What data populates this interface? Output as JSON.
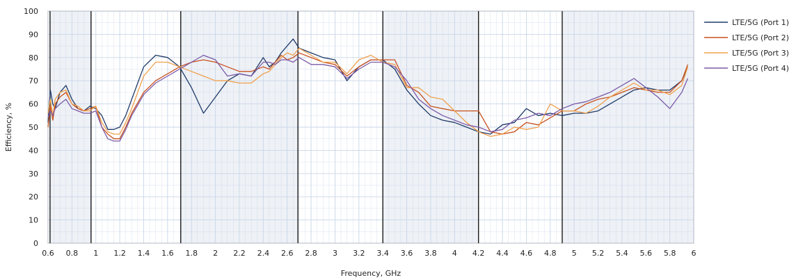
{
  "chart_data": {
    "type": "line",
    "title": "",
    "xlabel": "Frequency, GHz",
    "ylabel": "Efficiency, %",
    "xlim": [
      0.6,
      6.0
    ],
    "ylim": [
      0,
      100
    ],
    "x_ticks": [
      0.6,
      0.8,
      1,
      1.2,
      1.4,
      1.6,
      1.8,
      2,
      2.2,
      2.4,
      2.6,
      2.8,
      3,
      3.2,
      3.4,
      3.6,
      3.8,
      4,
      4.2,
      4.4,
      4.6,
      4.8,
      5,
      5.2,
      5.4,
      5.6,
      5.8,
      6
    ],
    "x_tick_labels": [
      "0.6",
      "0.8",
      "1",
      "1.2",
      "1.4",
      "1.6",
      "1.8",
      "2",
      "2.2",
      "2.4",
      "2.6",
      "2.8",
      "3",
      "3.2",
      "3.4",
      "3.6",
      "3.8",
      "4",
      "4.2",
      "4.4",
      "4.6",
      "4.8",
      "5",
      "5.2",
      "5.4",
      "5.6",
      "5.8",
      "6"
    ],
    "y_ticks": [
      0,
      10,
      20,
      30,
      40,
      50,
      60,
      70,
      80,
      90,
      100
    ],
    "y_tick_labels": [
      "0",
      "10",
      "20",
      "30",
      "40",
      "50",
      "60",
      "70",
      "80",
      "90",
      "100"
    ],
    "grid": true,
    "legend_position": "right",
    "band_edges": [
      0.617,
      0.96,
      1.71,
      2.69,
      3.4,
      4.2,
      4.9
    ],
    "shaded_bands": [
      [
        0.617,
        0.96
      ],
      [
        1.71,
        2.69
      ],
      [
        3.4,
        4.2
      ],
      [
        4.9,
        6.0
      ]
    ],
    "colors": {
      "band_fill": "#eef1f6",
      "grid": "#c9d6e8",
      "band_edge": "#1b1b1b"
    },
    "series": [
      {
        "name": "LTE/5G  (Port 1)",
        "color": "#1f3a68",
        "x": [
          0.6,
          0.62,
          0.64,
          0.66,
          0.7,
          0.75,
          0.8,
          0.85,
          0.9,
          0.95,
          1.0,
          1.05,
          1.1,
          1.15,
          1.2,
          1.25,
          1.3,
          1.4,
          1.5,
          1.6,
          1.7,
          1.8,
          1.9,
          2.0,
          2.1,
          2.2,
          2.3,
          2.4,
          2.45,
          2.5,
          2.55,
          2.6,
          2.65,
          2.7,
          2.8,
          2.9,
          3.0,
          3.1,
          3.2,
          3.3,
          3.4,
          3.5,
          3.6,
          3.7,
          3.8,
          3.9,
          4.0,
          4.1,
          4.2,
          4.3,
          4.4,
          4.5,
          4.6,
          4.7,
          4.8,
          4.9,
          5.0,
          5.1,
          5.2,
          5.3,
          5.4,
          5.5,
          5.6,
          5.7,
          5.8,
          5.9,
          5.95
        ],
        "y": [
          52,
          66,
          60,
          58,
          65,
          68,
          62,
          58,
          57,
          59,
          58,
          55,
          49,
          49,
          50,
          55,
          62,
          76,
          81,
          80,
          76,
          67,
          56,
          63,
          70,
          73,
          72,
          80,
          76,
          78,
          82,
          85,
          88,
          84,
          82,
          80,
          79,
          70,
          76,
          79,
          79,
          75,
          66,
          60,
          55,
          53,
          52,
          50,
          48,
          47,
          51,
          52,
          58,
          55,
          56,
          55,
          56,
          56,
          57,
          60,
          63,
          66,
          67,
          66,
          66,
          70,
          76
        ]
      },
      {
        "name": "LTE/5G  (Port 2)",
        "color": "#c8501e",
        "x": [
          0.6,
          0.62,
          0.64,
          0.66,
          0.7,
          0.75,
          0.8,
          0.85,
          0.9,
          0.95,
          1.0,
          1.05,
          1.1,
          1.15,
          1.2,
          1.25,
          1.3,
          1.4,
          1.5,
          1.6,
          1.7,
          1.8,
          1.9,
          2.0,
          2.1,
          2.2,
          2.3,
          2.4,
          2.45,
          2.5,
          2.55,
          2.6,
          2.65,
          2.7,
          2.8,
          2.9,
          3.0,
          3.1,
          3.2,
          3.3,
          3.4,
          3.5,
          3.6,
          3.7,
          3.8,
          3.9,
          4.0,
          4.1,
          4.2,
          4.3,
          4.4,
          4.5,
          4.6,
          4.7,
          4.8,
          4.9,
          5.0,
          5.1,
          5.2,
          5.3,
          5.4,
          5.5,
          5.6,
          5.7,
          5.8,
          5.9,
          5.95
        ],
        "y": [
          50,
          59,
          53,
          60,
          63,
          65,
          60,
          58,
          57,
          58,
          59,
          50,
          47,
          45,
          45,
          50,
          56,
          65,
          70,
          73,
          76,
          78,
          79,
          78,
          76,
          74,
          74,
          76,
          75,
          78,
          81,
          79,
          80,
          82,
          80,
          78,
          77,
          72,
          76,
          79,
          79,
          79,
          68,
          65,
          59,
          58,
          57,
          57,
          57,
          48,
          47,
          48,
          52,
          51,
          54,
          57,
          57,
          60,
          62,
          63,
          65,
          67,
          66,
          65,
          65,
          70,
          77
        ]
      },
      {
        "name": "LTE/5G  (Port 3)",
        "color": "#f0a04b",
        "x": [
          0.6,
          0.62,
          0.64,
          0.66,
          0.7,
          0.75,
          0.8,
          0.85,
          0.9,
          0.95,
          1.0,
          1.05,
          1.1,
          1.15,
          1.2,
          1.25,
          1.3,
          1.4,
          1.5,
          1.6,
          1.7,
          1.8,
          1.9,
          2.0,
          2.1,
          2.2,
          2.3,
          2.4,
          2.45,
          2.5,
          2.55,
          2.6,
          2.65,
          2.7,
          2.8,
          2.9,
          3.0,
          3.1,
          3.2,
          3.3,
          3.4,
          3.5,
          3.6,
          3.7,
          3.8,
          3.9,
          4.0,
          4.1,
          4.2,
          4.3,
          4.4,
          4.5,
          4.6,
          4.7,
          4.8,
          4.9,
          5.0,
          5.1,
          5.2,
          5.3,
          5.4,
          5.5,
          5.6,
          5.7,
          5.8,
          5.9,
          5.95
        ],
        "y": [
          56,
          62,
          55,
          62,
          65,
          66,
          60,
          59,
          57,
          57,
          59,
          52,
          48,
          47,
          47,
          52,
          58,
          72,
          78,
          78,
          76,
          74,
          72,
          70,
          70,
          69,
          69,
          73,
          74,
          77,
          80,
          82,
          81,
          84,
          81,
          78,
          78,
          73,
          79,
          81,
          78,
          77,
          67,
          67,
          63,
          62,
          57,
          52,
          48,
          46,
          47,
          50,
          49,
          50,
          60,
          57,
          57,
          56,
          59,
          63,
          66,
          69,
          66,
          66,
          64,
          68,
          76
        ]
      },
      {
        "name": "LTE/5G  (Port 4)",
        "color": "#7b5aa6",
        "x": [
          0.6,
          0.62,
          0.64,
          0.66,
          0.7,
          0.75,
          0.8,
          0.85,
          0.9,
          0.95,
          1.0,
          1.05,
          1.1,
          1.15,
          1.2,
          1.25,
          1.3,
          1.4,
          1.5,
          1.6,
          1.7,
          1.8,
          1.9,
          2.0,
          2.1,
          2.2,
          2.3,
          2.4,
          2.45,
          2.5,
          2.55,
          2.6,
          2.65,
          2.7,
          2.8,
          2.9,
          3.0,
          3.1,
          3.2,
          3.3,
          3.4,
          3.5,
          3.6,
          3.7,
          3.8,
          3.9,
          4.0,
          4.1,
          4.2,
          4.3,
          4.4,
          4.5,
          4.6,
          4.7,
          4.8,
          4.9,
          5.0,
          5.1,
          5.2,
          5.3,
          5.4,
          5.5,
          5.6,
          5.7,
          5.8,
          5.9,
          5.95
        ],
        "y": [
          54,
          57,
          55,
          58,
          60,
          62,
          58,
          57,
          56,
          56,
          57,
          50,
          45,
          44,
          44,
          49,
          55,
          64,
          69,
          72,
          75,
          78,
          81,
          79,
          72,
          73,
          72,
          78,
          78,
          77,
          79,
          79,
          78,
          80,
          77,
          77,
          76,
          71,
          75,
          78,
          78,
          76,
          70,
          62,
          58,
          55,
          53,
          51,
          50,
          48,
          49,
          53,
          54,
          56,
          55,
          58,
          60,
          61,
          63,
          65,
          68,
          71,
          67,
          63,
          58,
          65,
          71
        ]
      }
    ]
  }
}
